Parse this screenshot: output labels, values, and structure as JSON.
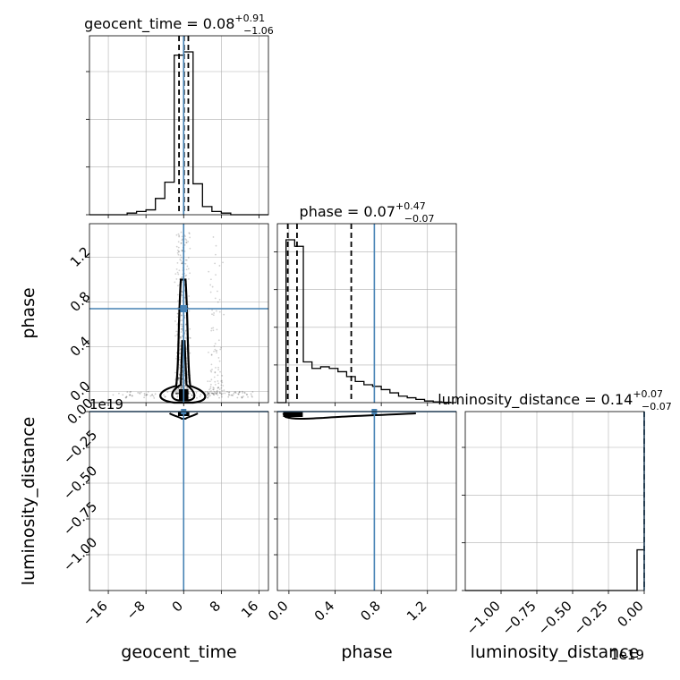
{
  "chart_data": {
    "type": "corner",
    "parameters": [
      "geocent_time",
      "phase",
      "luminosity_distance"
    ],
    "truths": {
      "geocent_time": 0.0,
      "phase": 0.74,
      "luminosity_distance": 0.0
    },
    "offset_text": {
      "luminosity_distance_y": "1e19",
      "luminosity_distance_x": "1e19"
    },
    "marginals": [
      {
        "param": "geocent_time",
        "title_main": "geocent_time = 0.08",
        "title_sup": "+0.91",
        "title_sub": "−1.06",
        "xlim": [
          -20,
          18
        ],
        "quantiles": [
          -0.98,
          0.08,
          0.99
        ],
        "hist": {
          "edges": [
            -20,
            -18,
            -16,
            -14,
            -12,
            -10,
            -8,
            -6,
            -4,
            -2,
            0,
            2,
            4,
            6,
            8,
            10,
            12,
            14,
            16,
            18
          ],
          "counts": [
            0,
            0,
            0,
            0,
            0.01,
            0.02,
            0.03,
            0.1,
            0.2,
            0.98,
            1.0,
            0.19,
            0.05,
            0.02,
            0.01,
            0,
            0,
            0,
            0
          ]
        },
        "ytick_count": 4
      },
      {
        "param": "phase",
        "title_main": "phase = 0.07",
        "title_sup": "+0.47",
        "title_sub": "−0.07",
        "xlim": [
          -0.1,
          1.45
        ],
        "quantiles": [
          -0.01,
          0.07,
          0.54
        ],
        "hist": {
          "edges": [
            -0.1,
            -0.025,
            0.05,
            0.125,
            0.2,
            0.275,
            0.35,
            0.425,
            0.5,
            0.575,
            0.65,
            0.725,
            0.8,
            0.875,
            0.95,
            1.025,
            1.1,
            1.175,
            1.25,
            1.325,
            1.4,
            1.45
          ],
          "counts": [
            0.0,
            1.0,
            0.96,
            0.25,
            0.21,
            0.22,
            0.21,
            0.19,
            0.16,
            0.13,
            0.11,
            0.1,
            0.08,
            0.06,
            0.04,
            0.03,
            0.02,
            0.01,
            0.005,
            0.002,
            0.0
          ]
        },
        "ytick_count": 5
      },
      {
        "param": "luminosity_distance",
        "title_main": "luminosity_distance = 0.14",
        "title_sup": "+0.07",
        "title_sub": "−0.07",
        "xlim": [
          -1.25,
          0.0
        ],
        "quantiles": [
          0.0
        ],
        "hist": {
          "edges": [
            -1.25,
            -0.05,
            -0.02,
            0.0
          ],
          "counts": [
            0.0,
            0.25,
            0.25
          ]
        },
        "ytick_count": 4
      }
    ],
    "axes": {
      "geocent_time": {
        "label": "geocent_time",
        "range": [
          -20,
          18
        ],
        "ticks": [
          -16,
          -8,
          0,
          8,
          16
        ],
        "ticklabels": [
          "−16",
          "−8",
          "0",
          "8",
          "16"
        ]
      },
      "phase": {
        "label": "phase",
        "range": [
          -0.1,
          1.45
        ],
        "ticks": [
          0.0,
          0.4,
          0.8,
          1.2
        ],
        "ticklabels": [
          "0.0",
          "0.4",
          "0.8",
          "1.2"
        ]
      },
      "phase_y": {
        "label": "phase",
        "range": [
          -0.1,
          1.5
        ],
        "ticks": [
          0.0,
          0.4,
          0.8,
          1.2
        ],
        "ticklabels": [
          "0.0",
          "0.4",
          "0.8",
          "1.2"
        ]
      },
      "luminosity_distance": {
        "label": "luminosity_distance",
        "range": [
          -1.25,
          0.0
        ],
        "ticks": [
          -1.0,
          -0.75,
          -0.5,
          -0.25,
          0.0
        ],
        "ticklabels": [
          "−1.00",
          "−0.75",
          "−0.50",
          "−0.25",
          "0.00"
        ]
      }
    },
    "grid": true,
    "colors": {
      "truth": "#4682b4",
      "hist": "#000000",
      "grid": "#b0b0b0",
      "points": "#000000"
    }
  }
}
